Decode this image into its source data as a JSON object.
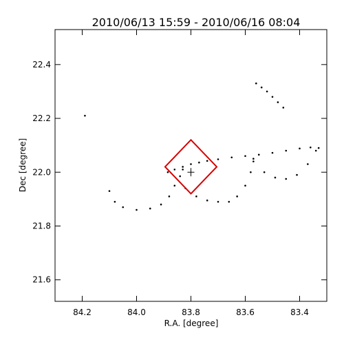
{
  "chart_data": {
    "type": "scatter",
    "title": "2010/06/13 15:59 - 2010/06/16 08:04",
    "xlabel": "R.A. [degree]",
    "ylabel": "Dec [degree]",
    "xlim": [
      84.3,
      83.3
    ],
    "ylim": [
      21.52,
      22.53
    ],
    "x_ticks": [
      84.2,
      84.0,
      83.8,
      83.6,
      83.4
    ],
    "x_tick_labels": [
      "84.2",
      "84.0",
      "83.8",
      "83.6",
      "83.4"
    ],
    "y_ticks": [
      21.6,
      21.8,
      22.0,
      22.2,
      22.4
    ],
    "y_tick_labels": [
      "21.6",
      "21.8",
      "22.0",
      "22.2",
      "22.4"
    ],
    "grid": false,
    "colors": {
      "points": "#000000",
      "box": "#d40000",
      "frame": "#000000"
    },
    "series": [
      {
        "points": [
          [
            83.885,
            22.0
          ],
          [
            83.86,
            22.01
          ],
          [
            83.83,
            22.02
          ],
          [
            83.8,
            22.03
          ],
          [
            83.77,
            22.036
          ],
          [
            83.74,
            22.042
          ],
          [
            83.7,
            22.048
          ],
          [
            83.65,
            22.055
          ],
          [
            83.6,
            22.06
          ],
          [
            83.55,
            22.065
          ],
          [
            83.5,
            22.072
          ],
          [
            83.45,
            22.08
          ],
          [
            83.4,
            22.088
          ],
          [
            83.36,
            22.092
          ],
          [
            83.33,
            22.09
          ]
        ]
      },
      {
        "points": [
          [
            84.1,
            21.93
          ],
          [
            84.08,
            21.89
          ],
          [
            84.05,
            21.87
          ],
          [
            84.0,
            21.86
          ],
          [
            83.95,
            21.865
          ],
          [
            83.91,
            21.88
          ],
          [
            83.88,
            21.91
          ],
          [
            83.86,
            21.95
          ],
          [
            83.84,
            21.985
          ],
          [
            83.83,
            22.01
          ]
        ]
      },
      {
        "points": [
          [
            83.82,
            21.94
          ],
          [
            83.78,
            21.91
          ],
          [
            83.74,
            21.895
          ],
          [
            83.7,
            21.89
          ],
          [
            83.66,
            21.89
          ],
          [
            83.63,
            21.91
          ],
          [
            83.6,
            21.95
          ],
          [
            83.58,
            22.0
          ],
          [
            83.57,
            22.04
          ]
        ]
      },
      {
        "points": [
          [
            83.57,
            22.05
          ],
          [
            83.53,
            22.0
          ],
          [
            83.49,
            21.98
          ],
          [
            83.45,
            21.975
          ],
          [
            83.41,
            21.99
          ],
          [
            83.37,
            22.03
          ],
          [
            83.34,
            22.08
          ]
        ]
      },
      {
        "points": [
          [
            83.56,
            22.33
          ],
          [
            83.54,
            22.315
          ],
          [
            83.52,
            22.3
          ],
          [
            83.5,
            22.28
          ],
          [
            83.48,
            22.26
          ],
          [
            83.46,
            22.24
          ]
        ]
      },
      {
        "points": [
          [
            84.19,
            22.21
          ]
        ]
      }
    ],
    "box_vertices": [
      [
        83.895,
        22.02
      ],
      [
        83.8,
        22.12
      ],
      [
        83.705,
        22.02
      ],
      [
        83.8,
        21.92
      ]
    ],
    "cross": [
      83.8,
      22.0
    ]
  }
}
